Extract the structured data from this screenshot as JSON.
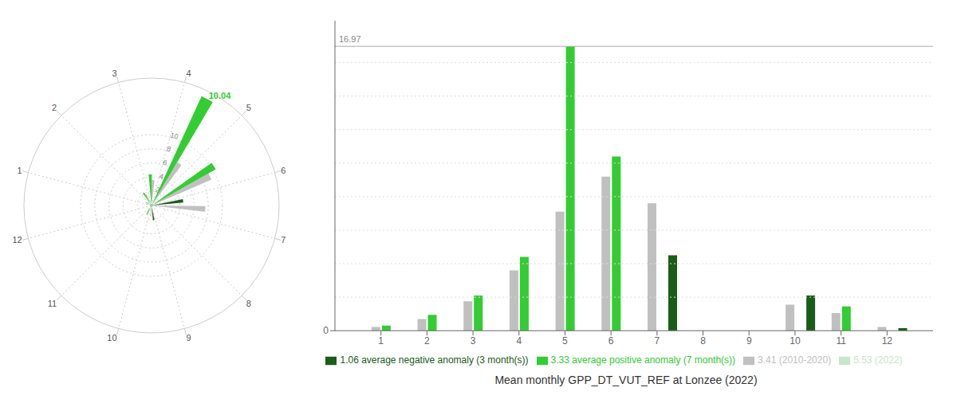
{
  "chart_data": [
    {
      "type": "polar",
      "categories": [
        1,
        2,
        3,
        4,
        5,
        6,
        7,
        8,
        9,
        10,
        11,
        12
      ],
      "ylim": [
        0,
        17.5
      ],
      "yticks": [
        2,
        4,
        6,
        8,
        10
      ],
      "grid": true,
      "series": [
        {
          "name": "5.53 (2022)",
          "color": "#c8e6c9",
          "values": [
            null,
            null,
            null,
            null,
            null,
            null,
            null,
            0.0,
            0.0,
            null,
            null,
            null
          ]
        },
        {
          "name": "3.41 (2010-2020)",
          "color": "#c0c0c0",
          "values": [
            0.22,
            0.7,
            1.75,
            3.6,
            7.1,
            9.2,
            7.6,
            0.0,
            0.0,
            1.55,
            1.05,
            0.22
          ]
        },
        {
          "name": "3.33 average positive anomaly (7 month(s))",
          "color": "#33cc33",
          "values": [
            0.3,
            0.95,
            2.1,
            4.4,
            16.97,
            10.4,
            null,
            null,
            null,
            null,
            1.45,
            null
          ]
        },
        {
          "name": "1.06 average negative anomaly (3 month(s))",
          "color": "#1a5c1a",
          "values": [
            null,
            null,
            null,
            null,
            null,
            null,
            4.5,
            null,
            null,
            2.1,
            null,
            0.15
          ]
        }
      ],
      "annotations": [
        {
          "text": "10.04",
          "x": 5,
          "color": "#33cc33"
        }
      ]
    },
    {
      "type": "bar",
      "title": "Mean monthly GPP_DT_VUT_REF at Lonzee (2022)",
      "x": [
        1,
        2,
        3,
        4,
        5,
        6,
        7,
        8,
        9,
        10,
        11,
        12
      ],
      "xlim": [
        0,
        13
      ],
      "xticks": [
        1,
        2,
        3,
        4,
        5,
        6,
        7,
        8,
        9,
        10,
        11,
        12
      ],
      "ylim": [
        0,
        18.5
      ],
      "yticks": [
        0
      ],
      "grid": true,
      "grid_lines": [
        2,
        4,
        6,
        8,
        10,
        12,
        14,
        16
      ],
      "hlines": [
        {
          "y": 16.97,
          "label": "16.97"
        }
      ],
      "legend": "bottom",
      "series": [
        {
          "name": "5.53 (2022)",
          "color": "#c8e6c9",
          "values": [
            null,
            null,
            null,
            null,
            null,
            null,
            null,
            0.0,
            0.0,
            null,
            null,
            null
          ]
        },
        {
          "name": "3.41 (2010-2020)",
          "color": "#c0c0c0",
          "values": [
            0.22,
            0.7,
            1.75,
            3.6,
            7.1,
            9.2,
            7.6,
            0.0,
            0.0,
            1.55,
            1.05,
            0.22
          ]
        },
        {
          "name": "3.33 average positive anomaly (7 month(s))",
          "color": "#33cc33",
          "values": [
            0.3,
            0.95,
            2.1,
            4.4,
            16.97,
            10.4,
            null,
            null,
            null,
            null,
            1.45,
            null
          ]
        },
        {
          "name": "1.06 average negative anomaly (3 month(s))",
          "color": "#1a5c1a",
          "values": [
            null,
            null,
            null,
            null,
            null,
            null,
            4.5,
            null,
            null,
            2.1,
            null,
            0.15
          ]
        }
      ]
    }
  ]
}
